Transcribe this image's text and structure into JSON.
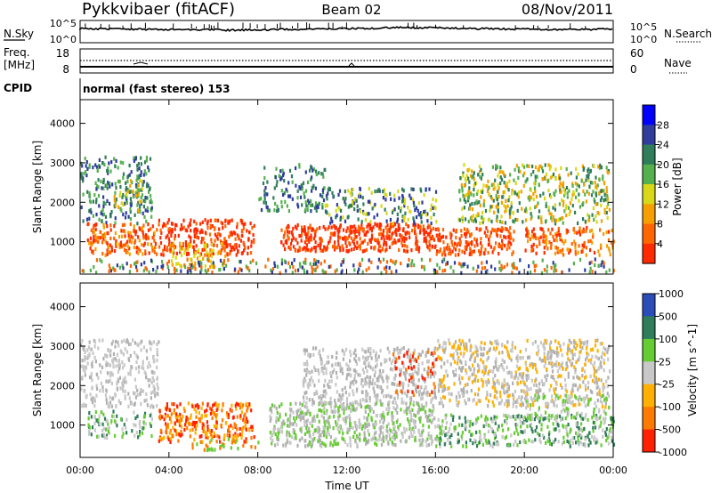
{
  "header": {
    "station": "Pykkvibaer (fitACF)",
    "beam": "Beam 02",
    "date": "08/Nov/2011"
  },
  "strip_panels": {
    "nsky": {
      "label": "N.Sky",
      "right_label": "N.Search",
      "left_ticks": [
        "10^5",
        "10^0"
      ],
      "right_ticks": [
        "10^5",
        "10^0"
      ]
    },
    "freq": {
      "label_line1": "Freq.",
      "label_line2": "[MHz]",
      "left_ticks": [
        "18",
        "8"
      ],
      "right_label": "Nave",
      "right_ticks": [
        "60",
        "0"
      ]
    },
    "cpid": {
      "label": "CPID",
      "text": "normal (fast stereo) 153"
    }
  },
  "chart_data": [
    {
      "type": "heatmap",
      "name": "power",
      "ylabel": "Slant Range [km]",
      "y_ticks": [
        1000,
        2000,
        3000,
        4000
      ],
      "ylim": [
        180,
        4600
      ],
      "x_ticks": [
        "00:00",
        "04:00",
        "08:00",
        "12:00",
        "16:00",
        "20:00",
        "00:00"
      ],
      "xlim_hours": [
        0,
        24
      ],
      "colorbar": {
        "label": "Power [dB]",
        "ticks": [
          4,
          8,
          12,
          16,
          20,
          24,
          28
        ],
        "colors": [
          "#0000ff",
          "#2e3c9c",
          "#2f7d5a",
          "#56b04e",
          "#d8d818",
          "#f5a000",
          "#ff6600",
          "#ff2a00"
        ]
      }
    },
    {
      "type": "heatmap",
      "name": "velocity",
      "ylabel": "Slant Range [km]",
      "y_ticks": [
        1000,
        2000,
        3000,
        4000
      ],
      "ylim": [
        180,
        4600
      ],
      "x_ticks": [
        "00:00",
        "04:00",
        "08:00",
        "12:00",
        "16:00",
        "20:00",
        "00:00"
      ],
      "xlim_hours": [
        0,
        24
      ],
      "xlabel": "Time UT",
      "colorbar": {
        "label": "Velocity [m s^-1]",
        "ticks": [
          1000,
          500,
          100,
          25,
          -25,
          -100,
          -500,
          -1000
        ],
        "colors": [
          "#2b4db8",
          "#2f7d5a",
          "#66cc33",
          "#c8c8c8",
          "#ffb000",
          "#ff7a00",
          "#ff2000"
        ]
      }
    }
  ]
}
